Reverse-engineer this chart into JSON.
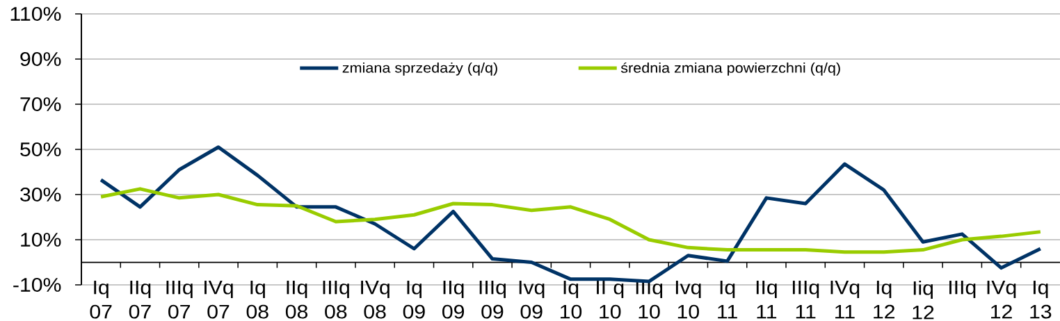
{
  "chart_data": {
    "type": "line",
    "categories": [
      "Iq 07",
      "IIq 07",
      "IIIq 07",
      "IVq 07",
      "Iq 08",
      "IIq 08",
      "IIIq 08",
      "IVq 08",
      "Iq 09",
      "IIq 09",
      "IIIq 09",
      "Ivq 09",
      "Iq 10",
      "II q 10",
      "IIIq 10",
      "Ivq 10",
      "Iq 11",
      "IIq 11",
      "IIIq 11",
      "IVq 11",
      "Iq 12",
      "Iiq 12",
      "IIIq",
      "IVq 12",
      "Iq 13"
    ],
    "series": [
      {
        "name": "zmiana sprzedaży (q/q)",
        "color": "#003366",
        "values": [
          36.5,
          24.5,
          41,
          51,
          38.5,
          24.5,
          24.5,
          17,
          6,
          22.5,
          1.5,
          0,
          -7.5,
          -7.5,
          -8.5,
          3,
          0.5,
          28.5,
          26,
          43.5,
          32,
          9,
          12.5,
          -2.5,
          6
        ]
      },
      {
        "name": "średnia zmiana powierzchni (q/q)",
        "color": "#99cc00",
        "values": [
          29,
          32.5,
          28.5,
          30,
          25.5,
          25,
          18,
          19,
          21,
          26,
          25.5,
          23,
          24.5,
          19,
          10,
          6.5,
          5.5,
          5.5,
          5.5,
          4.5,
          4.5,
          5.5,
          10,
          11.5,
          13.5
        ]
      }
    ],
    "ylim": [
      -10,
      110
    ],
    "yticks": [
      {
        "value": -10,
        "label": "-10%"
      },
      {
        "value": 10,
        "label": "10%"
      },
      {
        "value": 30,
        "label": "30%"
      },
      {
        "value": 50,
        "label": "50%"
      },
      {
        "value": 70,
        "label": "70%"
      },
      {
        "value": 90,
        "label": "90%"
      },
      {
        "value": 110,
        "label": "110%"
      }
    ],
    "grid": "y",
    "legend": "top",
    "line_style": "solid"
  }
}
